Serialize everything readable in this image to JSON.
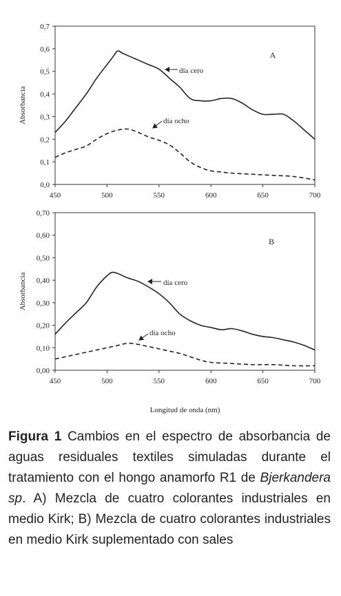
{
  "chart_data": [
    {
      "type": "line",
      "panel_label": "A",
      "ylabel": "Absorbancia",
      "xlabel": "",
      "xlim": [
        450,
        700
      ],
      "ylim": [
        0,
        0.7
      ],
      "x_ticks": [
        "450",
        "500",
        "550",
        "600",
        "650",
        "700"
      ],
      "y_ticks": [
        "0,0",
        "0,1",
        "0,2",
        "0,3",
        "0,4",
        "0,5",
        "0,6",
        "0,7"
      ],
      "series": [
        {
          "name": "día cero",
          "style": "solid",
          "x": [
            450,
            460,
            470,
            480,
            490,
            500,
            505,
            510,
            515,
            520,
            530,
            540,
            550,
            560,
            570,
            580,
            590,
            600,
            610,
            620,
            630,
            640,
            650,
            660,
            670,
            680,
            690,
            700
          ],
          "y": [
            0.23,
            0.28,
            0.34,
            0.4,
            0.47,
            0.53,
            0.56,
            0.59,
            0.58,
            0.57,
            0.55,
            0.53,
            0.51,
            0.47,
            0.43,
            0.38,
            0.37,
            0.37,
            0.38,
            0.38,
            0.36,
            0.33,
            0.31,
            0.31,
            0.31,
            0.28,
            0.24,
            0.2
          ]
        },
        {
          "name": "día ocho",
          "style": "dashed",
          "x": [
            450,
            460,
            470,
            480,
            490,
            500,
            510,
            520,
            530,
            540,
            550,
            560,
            570,
            580,
            590,
            600,
            610,
            620,
            640,
            660,
            680,
            700
          ],
          "y": [
            0.12,
            0.14,
            0.155,
            0.17,
            0.2,
            0.225,
            0.24,
            0.245,
            0.23,
            0.21,
            0.195,
            0.175,
            0.14,
            0.1,
            0.075,
            0.06,
            0.055,
            0.05,
            0.045,
            0.04,
            0.035,
            0.02
          ]
        }
      ]
    },
    {
      "type": "line",
      "panel_label": "B",
      "ylabel": "Absorbancia",
      "xlabel": "Longitud de onda (nm)",
      "xlim": [
        450,
        700
      ],
      "ylim": [
        0,
        0.7
      ],
      "x_ticks": [
        "450",
        "500",
        "550",
        "600",
        "650",
        "700"
      ],
      "y_ticks": [
        "0,00",
        "0,10",
        "0,20",
        "0,30",
        "0,40",
        "0,50",
        "0,60",
        "0,70"
      ],
      "series": [
        {
          "name": "día cero",
          "style": "solid",
          "x": [
            450,
            460,
            470,
            480,
            490,
            500,
            505,
            510,
            520,
            530,
            540,
            550,
            560,
            570,
            580,
            590,
            600,
            610,
            620,
            630,
            640,
            650,
            660,
            670,
            680,
            690,
            700
          ],
          "y": [
            0.16,
            0.21,
            0.255,
            0.3,
            0.37,
            0.42,
            0.435,
            0.43,
            0.41,
            0.395,
            0.37,
            0.34,
            0.3,
            0.25,
            0.22,
            0.2,
            0.19,
            0.18,
            0.185,
            0.175,
            0.16,
            0.15,
            0.145,
            0.135,
            0.125,
            0.11,
            0.09
          ]
        },
        {
          "name": "día ocho",
          "style": "dashed",
          "x": [
            450,
            460,
            470,
            480,
            490,
            500,
            510,
            520,
            530,
            540,
            550,
            560,
            570,
            580,
            590,
            600,
            620,
            640,
            660,
            680,
            700
          ],
          "y": [
            0.05,
            0.06,
            0.07,
            0.08,
            0.09,
            0.1,
            0.11,
            0.12,
            0.115,
            0.105,
            0.095,
            0.085,
            0.075,
            0.06,
            0.045,
            0.035,
            0.03,
            0.025,
            0.025,
            0.02,
            0.02
          ]
        }
      ]
    }
  ],
  "caption": {
    "label": "Figura 1",
    "text_1": " Cambios en el espectro de absorbancia de aguas residuales textiles simuladas durante el tratamiento con el hongo anamorfo R1 de ",
    "species": "Bjerkandera sp",
    "text_2": ". A) Mezcla de cuatro colorantes industriales en medio Kirk; B) Mezcla de cuatro colorantes industriales en medio Kirk suplementado con sales"
  }
}
